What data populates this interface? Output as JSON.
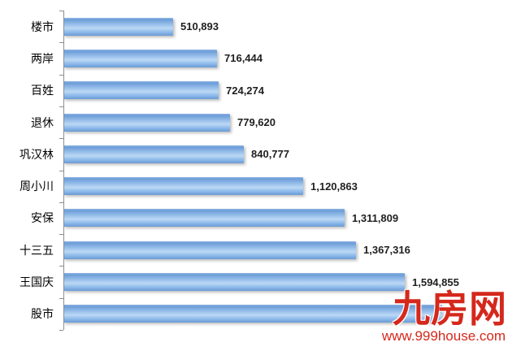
{
  "chart_data": {
    "type": "bar",
    "orientation": "horizontal",
    "title": "",
    "xlabel": "",
    "ylabel": "",
    "grid": false,
    "legend": false,
    "xlim": [
      0,
      2076000
    ],
    "categories": [
      "楼市",
      "两岸",
      "百姓",
      "退休",
      "巩汉林",
      "周小川",
      "安保",
      "十三五",
      "王国庆",
      "股市"
    ],
    "values": [
      510893,
      716444,
      724274,
      779620,
      840777,
      1120863,
      1311809,
      1367316,
      1594855,
      1770000
    ],
    "value_labels": [
      "510,893",
      "716,444",
      "724,274",
      "779,620",
      "840,777",
      "1,120,863",
      "1,311,809",
      "1,367,316",
      "1,594,855",
      ""
    ],
    "notes": "Data label of last bar (股市) is hidden behind the red watermark; its value ~1,770,000 is estimated from bar length. xlim max is estimated from pixel scale.",
    "bar_color": "#79ace2"
  },
  "axis": {
    "color": "#8e8e8e",
    "tick_count": 11
  },
  "watermark": {
    "brand": "九房网",
    "url": "www.999house.com",
    "color": "#d5281c"
  }
}
